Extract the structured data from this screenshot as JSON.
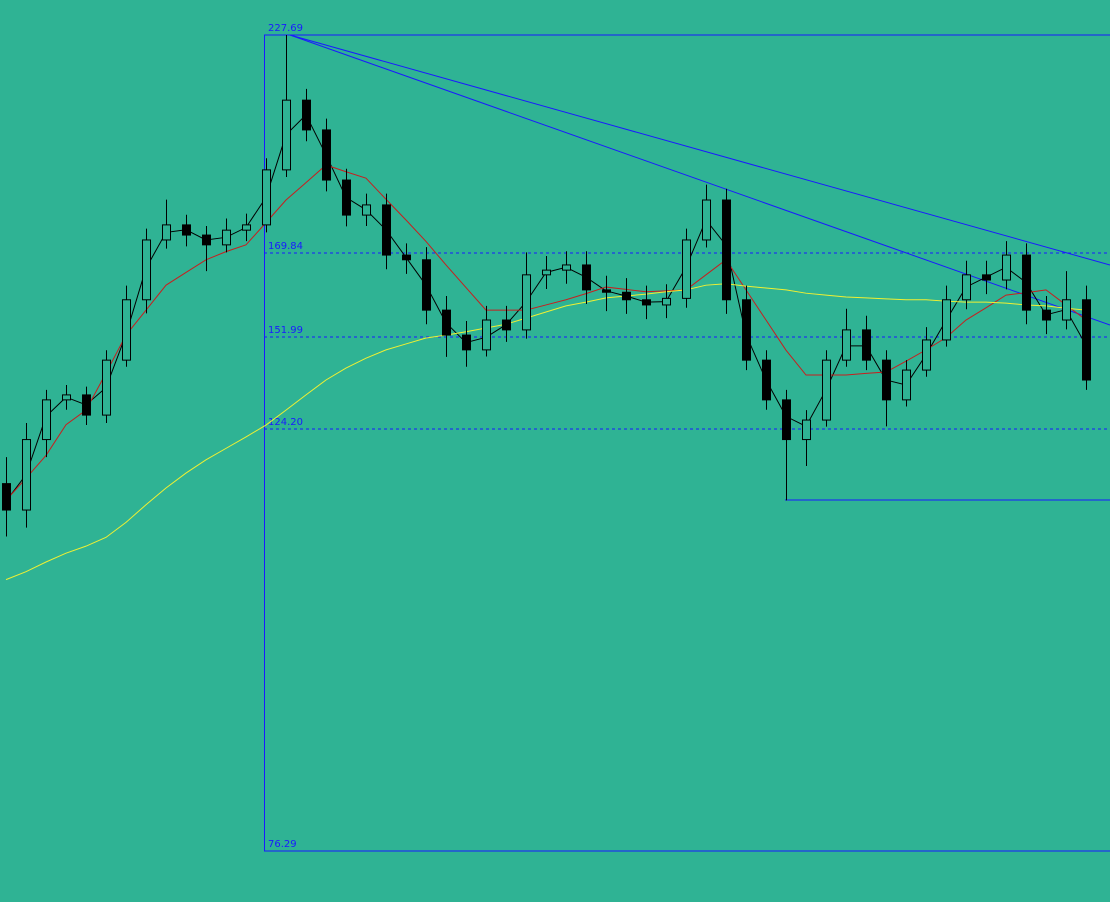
{
  "chart_data": {
    "type": "candlestick",
    "background": "#2fb394",
    "up_color": "#000000",
    "down_color": "#000000",
    "open": [
      118.0,
      115.0,
      123.0,
      133.0,
      134.5,
      128.4,
      145.0,
      159.9,
      173.3,
      177.3,
      174.6,
      172.0,
      175.9,
      177.3,
      191.9,
      210.4,
      202.5,
      189.2,
      179.9,
      182.6,
      169.4,
      168.4,
      157.7,
      152.4,
      148.1,
      155.6,
      153.5,
      165.2,
      166.2,
      167.3,
      162.0,
      161.5,
      159.9,
      158.8,
      160.2,
      173.3,
      183.9,
      159.9,
      145.0,
      133.0,
      123.0,
      126.9,
      145.0,
      153.5,
      145.0,
      133.0,
      142.0,
      151.1,
      159.9,
      165.2,
      164.1,
      169.4,
      157.7,
      155.6,
      159.9
    ],
    "high": [
      121.0,
      126.0,
      136.0,
      137.5,
      137.0,
      148.0,
      162.9,
      176.3,
      184.0,
      180.0,
      177.0,
      179.0,
      180.3,
      195.0,
      227.69,
      213.4,
      205.5,
      192.2,
      185.6,
      185.6,
      172.4,
      171.4,
      160.7,
      155.4,
      158.6,
      158.6,
      170.0,
      169.2,
      170.3,
      170.3,
      165.0,
      164.5,
      162.9,
      163.2,
      176.3,
      188.0,
      186.9,
      162.9,
      148.0,
      136.0,
      129.9,
      148.0,
      158.0,
      156.5,
      148.0,
      145.0,
      154.1,
      162.9,
      168.2,
      168.2,
      173.0,
      172.4,
      160.7,
      166.0,
      162.9
    ],
    "low": [
      112.0,
      113.0,
      121.0,
      130.0,
      125.4,
      126.0,
      143.0,
      157.0,
      171.0,
      171.6,
      166.0,
      170.0,
      173.0,
      175.3,
      190.0,
      199.5,
      186.2,
      176.9,
      177.0,
      166.4,
      165.4,
      154.7,
      146.0,
      143.0,
      146.1,
      150.5,
      151.5,
      162.2,
      163.3,
      159.0,
      157.5,
      156.9,
      155.8,
      156.0,
      158.2,
      171.3,
      156.9,
      142.0,
      130.0,
      116.1,
      120.0,
      124.9,
      143.0,
      142.0,
      125.0,
      131.0,
      140.0,
      149.1,
      157.9,
      161.1,
      162.1,
      154.7,
      152.6,
      153.6,
      136.0
    ],
    "close": [
      115.0,
      123.0,
      133.0,
      134.5,
      128.4,
      145.0,
      159.9,
      173.3,
      177.3,
      174.6,
      172.0,
      175.9,
      177.3,
      191.9,
      210.4,
      202.5,
      189.2,
      179.9,
      182.6,
      169.4,
      168.4,
      157.7,
      152.4,
      148.1,
      155.6,
      153.5,
      165.2,
      166.2,
      167.3,
      162.0,
      161.5,
      159.9,
      158.8,
      160.2,
      173.3,
      183.9,
      159.9,
      145.0,
      133.0,
      123.0,
      126.9,
      145.0,
      153.5,
      145.0,
      133.0,
      142.0,
      151.1,
      159.9,
      165.2,
      164.1,
      169.4,
      157.7,
      155.6,
      159.9,
      139.0
    ],
    "moving_averages": [
      {
        "color": "#000000",
        "values": [
          116,
          119,
          128,
          133.8,
          131.5,
          136.7,
          152.5,
          166.6,
          175.3,
          176,
          173.3,
          174,
          176.6,
          184.6,
          201.2,
          206.5,
          195.9,
          184.6,
          181.3,
          176,
          168.9,
          163,
          155,
          150.3,
          151.9,
          154.6,
          159.4,
          165.7,
          166.8,
          164.7,
          161.8,
          160.7,
          159.4,
          159.5,
          166.8,
          178.6,
          171.9,
          152.5,
          139,
          128,
          125,
          136,
          149.3,
          149.3,
          139,
          137.5,
          146.6,
          155.5,
          162.6,
          164.7,
          166.8,
          163.6,
          156.7,
          157.8,
          149.5
        ]
      },
      {
        "color": "#c81e1e",
        "values": [
          116.1,
          118.6,
          121.2,
          125.5,
          129.9,
          141.1,
          152.4,
          157.7,
          163.0,
          165.7,
          168.4,
          170.2,
          172.0,
          177.9,
          183.9,
          188.5,
          193.2,
          191.4,
          189.7,
          184.1,
          178.6,
          172.9,
          167.3,
          162.5,
          157.7,
          157.7,
          157.7,
          158.8,
          159.9,
          161.2,
          162.6,
          162.1,
          161.6,
          161.8,
          162.0,
          165.2,
          168.4,
          162.0,
          155.6,
          148.0,
          140.5,
          140.5,
          140.5,
          141.0,
          141.4,
          144.7,
          148.1,
          151.8,
          155.6,
          158.2,
          160.9,
          161.4,
          162.0,
          158.8,
          155.6
        ]
      },
      {
        "color": "#f0f032",
        "values": [
          107.1,
          108.0,
          109.1,
          110.1,
          110.9,
          111.9,
          113.6,
          115.6,
          117.5,
          119.2,
          120.7,
          122.0,
          123.3,
          125.4,
          129.9,
          134.5,
          139.0,
          142.6,
          145.6,
          148.1,
          149.9,
          151.7,
          152.4,
          153.1,
          153.9,
          154.7,
          156.0,
          157.3,
          158.6,
          159.4,
          160.3,
          160.7,
          161.1,
          161.6,
          162.0,
          163.0,
          163.3,
          162.8,
          162.4,
          162.0,
          161.3,
          160.9,
          160.5,
          160.3,
          160.1,
          159.9,
          159.9,
          159.6,
          159.4,
          159.4,
          159.2,
          158.8,
          158.6,
          158.1,
          157.7
        ]
      }
    ],
    "levels": [
      227.69,
      169.84,
      151.99,
      {
        "value": 124.2,
        "label": "124.20"
      },
      76.29
    ],
    "level_color": "#1a1aff"
  }
}
